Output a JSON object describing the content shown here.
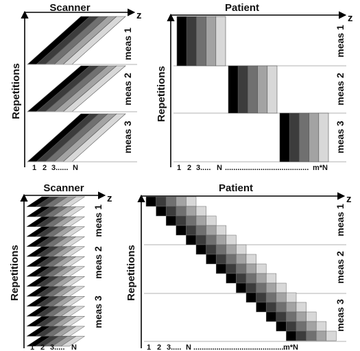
{
  "panels": {
    "top_left": {
      "title": "Scanner",
      "y_axis": "Repetitions",
      "z_axis": "z",
      "meas": [
        "meas 1",
        "meas 2",
        "meas 3"
      ],
      "ticks": [
        "1",
        "2",
        "3......",
        "N"
      ]
    },
    "top_right": {
      "title": "Patient",
      "y_axis": "Repetitions",
      "z_axis": "z",
      "meas": [
        "meas 1",
        "meas 2",
        "meas 3"
      ],
      "ticks": [
        "1",
        "2",
        "3.....",
        "N",
        "........................................",
        "m*N"
      ]
    },
    "bottom_left": {
      "title": "Scanner",
      "y_axis": "Repetitions",
      "z_axis": "z",
      "meas": [
        "meas 1",
        "meas 2",
        "meas 3"
      ],
      "ticks": [
        "1",
        "2",
        "3.....",
        "N"
      ]
    },
    "bottom_right": {
      "title": "Patient",
      "y_axis": "Repetitions",
      "z_axis": "z",
      "meas": [
        "meas 1",
        "meas 2",
        "meas 3"
      ],
      "ticks": [
        "1",
        "2",
        "3.....",
        "N",
        ".............................................",
        "m*N"
      ]
    }
  },
  "colors": {
    "slice_shades": [
      "#000000",
      "#3c3c3c",
      "#707070",
      "#a3a3a3",
      "#d8d8d8"
    ],
    "axis": "#000000",
    "divider": "#b0b0b0"
  }
}
